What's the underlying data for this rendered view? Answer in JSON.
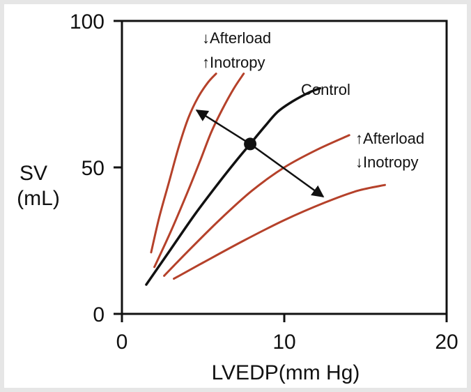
{
  "chart_data": {
    "type": "line",
    "xlabel": "LVEDP(mm Hg)",
    "ylabel_line1": "SV",
    "ylabel_line2": "(mL)",
    "xlim": [
      0,
      20
    ],
    "ylim": [
      0,
      100
    ],
    "xticks": [
      "0",
      "10",
      "20"
    ],
    "yticks": [
      "0",
      "50",
      "100"
    ],
    "grid": false,
    "series": [
      {
        "name": "Control",
        "color": "#111111",
        "x": [
          1.5,
          3,
          4.5,
          6,
          7,
          7.9,
          8.8,
          9.6,
          10.5,
          11.5,
          12.2
        ],
        "y": [
          10,
          22,
          34,
          45,
          52,
          58,
          64,
          69,
          72.5,
          75.5,
          77
        ]
      },
      {
        "color": "#b5412a",
        "x": [
          1.8,
          2.3,
          2.9,
          3.5,
          4.1,
          4.7,
          5.3,
          5.8
        ],
        "y": [
          21,
          33,
          45,
          57,
          67,
          74,
          79,
          82
        ]
      },
      {
        "color": "#b5412a",
        "x": [
          2.0,
          3.0,
          4.0,
          4.8,
          5.5,
          6.2,
          6.9,
          7.5
        ],
        "y": [
          16,
          28,
          41,
          52,
          62,
          70,
          77,
          82
        ]
      },
      {
        "color": "#b5412a",
        "x": [
          2.6,
          4,
          6,
          8,
          10,
          12,
          14
        ],
        "y": [
          13,
          21,
          32,
          42,
          50,
          56,
          61
        ]
      },
      {
        "color": "#b5412a",
        "x": [
          3.2,
          5,
          7.5,
          10,
          12.5,
          14.5,
          16.2
        ],
        "y": [
          12,
          17.5,
          25,
          32,
          38,
          42,
          44
        ]
      }
    ],
    "points": [
      {
        "x": 7.9,
        "y": 58
      }
    ],
    "arrows": [
      {
        "from": {
          "x": 7.9,
          "y": 58
        },
        "to": {
          "x": 4.6,
          "y": 69.5
        }
      },
      {
        "from": {
          "x": 7.9,
          "y": 58
        },
        "to": {
          "x": 12.4,
          "y": 40
        }
      }
    ],
    "annotations": {
      "control": "Control",
      "decreased_afterload": "↓Afterload",
      "increased_inotropy": "↑Inotropy",
      "increased_afterload": "↑Afterload",
      "decreased_inotropy": "↓Inotropy"
    }
  }
}
